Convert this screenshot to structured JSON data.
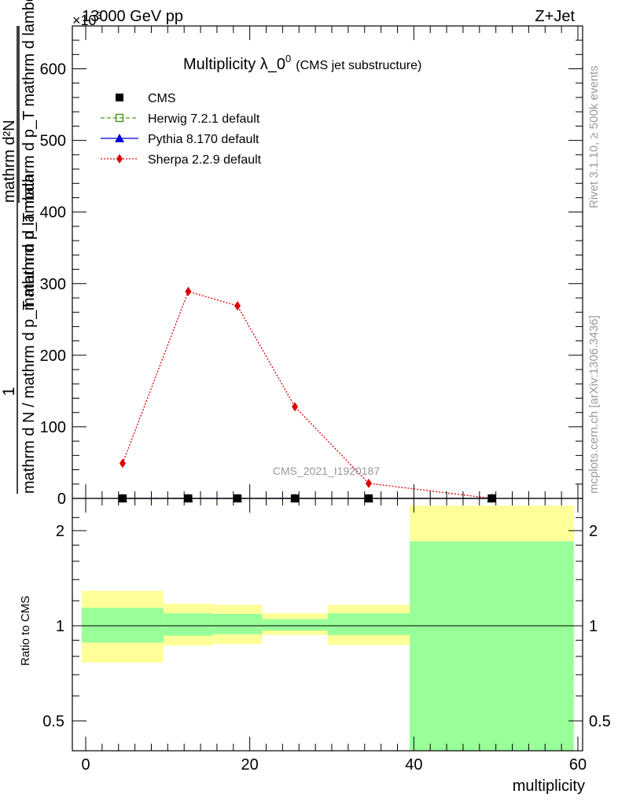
{
  "header": {
    "energy_label": "13000 GeV pp",
    "process_label": "Z+Jet",
    "exponent_marker": "×10",
    "exponent_power": "3"
  },
  "side_labels": {
    "rivet": "Rivet 3.1.10, ≥ 500k events",
    "mcplots": "mcplots.cern.ch [arXiv:1306.3436]"
  },
  "title": {
    "main": "Multiplicity λ_0",
    "superscript": "0",
    "sub": "(CMS jet substructure)"
  },
  "watermark": "CMS_2021_I1920187",
  "ylabel_main": {
    "numerator_one": "1",
    "denominator_long": "mathrm d N / mathrm d p_T mathrm d lambda",
    "stacked_top": "mathrm d²N",
    "stacked_bottom": "mathrm d p_T mathrm d p_T mathrm d lambda"
  },
  "legend": [
    {
      "label": "CMS",
      "color": "#000000",
      "marker": "square-filled",
      "line": "none"
    },
    {
      "label": "Herwig 7.2.1 default",
      "color": "#4a9a1a",
      "marker": "square-open",
      "line": "dashed"
    },
    {
      "label": "Pythia 8.170 default",
      "color": "#0000cc",
      "marker": "triangle",
      "line": "solid"
    },
    {
      "label": "Sherpa 2.2.9 default",
      "color": "#dd0000",
      "marker": "diamond",
      "line": "dotted"
    }
  ],
  "chart_data": {
    "type": "line",
    "xlabel": "multiplicity",
    "xlim": [
      -1,
      60
    ],
    "x_ticks": [
      0,
      20,
      40,
      60
    ],
    "main_panel": {
      "ylabel": "1 / mathrm d N / mathrm d p_T mathrm d lambda · mathrm d²N / mathrm d p_T mathrm d p_T mathrm d lambda",
      "ylim": [
        0,
        650
      ],
      "y_ticks": [
        0,
        100,
        200,
        300,
        400,
        500,
        600
      ],
      "y_multiplier": "×10^3",
      "series": [
        {
          "name": "CMS",
          "x": [
            4.5,
            12.5,
            18.5,
            25.5,
            34.5,
            49.5
          ],
          "y": [
            0,
            0,
            0,
            0,
            0,
            0
          ]
        },
        {
          "name": "Herwig 7.2.1 default",
          "x": [
            4.5,
            12.5,
            18.5,
            25.5,
            34.5,
            49.5
          ],
          "y": [
            0,
            0,
            0,
            0,
            0,
            0
          ]
        },
        {
          "name": "Pythia 8.170 default",
          "x": [
            4.5,
            12.5,
            18.5,
            25.5,
            34.5,
            49.5
          ],
          "y": [
            0,
            0,
            0,
            0,
            0,
            0
          ]
        },
        {
          "name": "Sherpa 2.2.9 default",
          "x": [
            4.5,
            12.5,
            18.5,
            25.5,
            34.5,
            49.5
          ],
          "y": [
            49,
            289,
            269,
            128,
            21,
            0
          ]
        }
      ]
    },
    "ratio_panel": {
      "ylabel": "Ratio to CMS",
      "scale": "log",
      "ylim": [
        0.4,
        2.4
      ],
      "y_ticks": [
        0.5,
        1,
        2
      ],
      "reference": 1,
      "bins": [
        {
          "x_low": -0.5,
          "x_high": 9.5,
          "inner_low": 0.885,
          "inner_high": 1.14,
          "outer_low": 0.765,
          "outer_high": 1.29
        },
        {
          "x_low": 9.5,
          "x_high": 15.5,
          "inner_low": 0.93,
          "inner_high": 1.095,
          "outer_low": 0.865,
          "outer_high": 1.175
        },
        {
          "x_low": 15.5,
          "x_high": 21.5,
          "inner_low": 0.94,
          "inner_high": 1.09,
          "outer_low": 0.875,
          "outer_high": 1.165
        },
        {
          "x_low": 21.5,
          "x_high": 29.5,
          "inner_low": 0.965,
          "inner_high": 1.05,
          "outer_low": 0.935,
          "outer_high": 1.095
        },
        {
          "x_low": 29.5,
          "x_high": 39.5,
          "inner_low": 0.935,
          "inner_high": 1.095,
          "outer_low": 0.87,
          "outer_high": 1.165
        },
        {
          "x_low": 39.5,
          "x_high": 59.5,
          "inner_low": 0.4,
          "inner_high": 1.85,
          "outer_low": 0.4,
          "outer_high": 2.4
        }
      ],
      "colors": {
        "inner": "#99ff99",
        "outer": "#ffff99"
      }
    }
  }
}
